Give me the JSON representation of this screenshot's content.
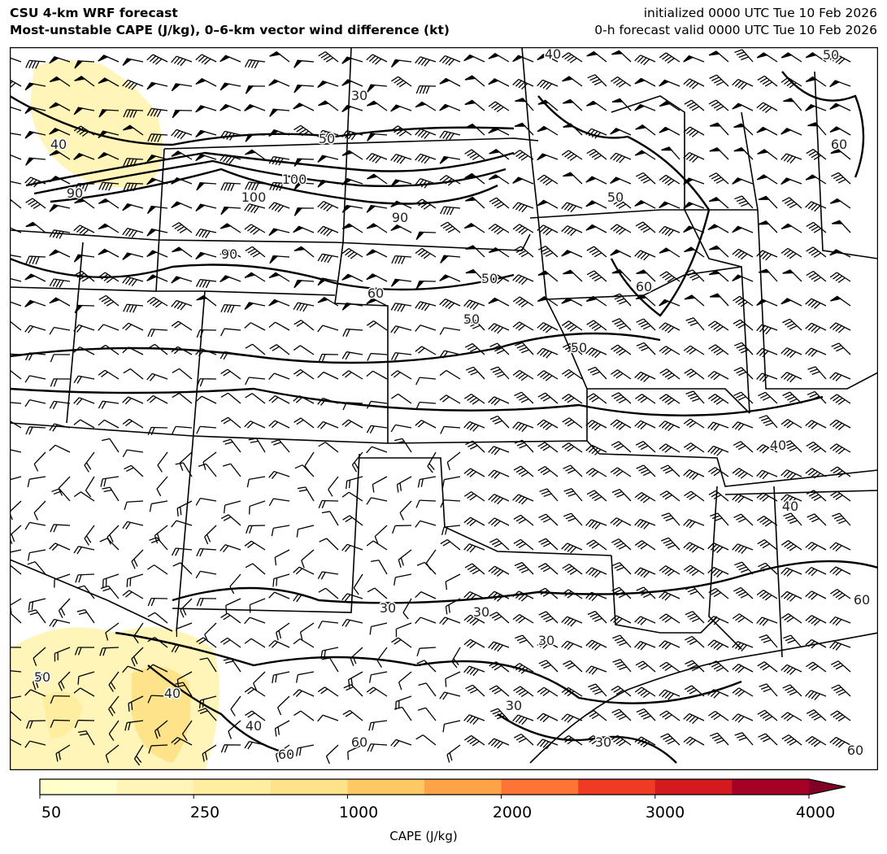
{
  "header": {
    "title_line1": "CSU 4-km WRF forecast",
    "title_line2": "Most-unstable CAPE (J/kg), 0–6-km vector wind difference (kt)",
    "init_line": "initialized 0000 UTC Tue 10 Feb 2026",
    "valid_line": "0-h forecast valid 0000 UTC Tue 10 Feb 2026"
  },
  "map": {
    "contour_labels": [
      "40",
      "30",
      "40",
      "50",
      "60",
      "90",
      "90",
      "100",
      "100",
      "90",
      "50",
      "50",
      "60",
      "50",
      "60",
      "40",
      "30",
      "30",
      "30",
      "30",
      "30",
      "50",
      "40",
      "40",
      "60",
      "60",
      "60",
      "50",
      "40",
      "60",
      "50"
    ],
    "cape_colors": [
      "#ffffcc",
      "#fff5b8",
      "#ffeda0",
      "#fee38b",
      "#fec965",
      "#fea447",
      "#fd7435",
      "#f03b24",
      "#d51a1f",
      "#a50026",
      "#800026"
    ]
  },
  "colorbar": {
    "ticks": [
      "50",
      "250",
      "1000",
      "2000",
      "3000",
      "4000"
    ],
    "label": "CAPE (J/kg)"
  }
}
